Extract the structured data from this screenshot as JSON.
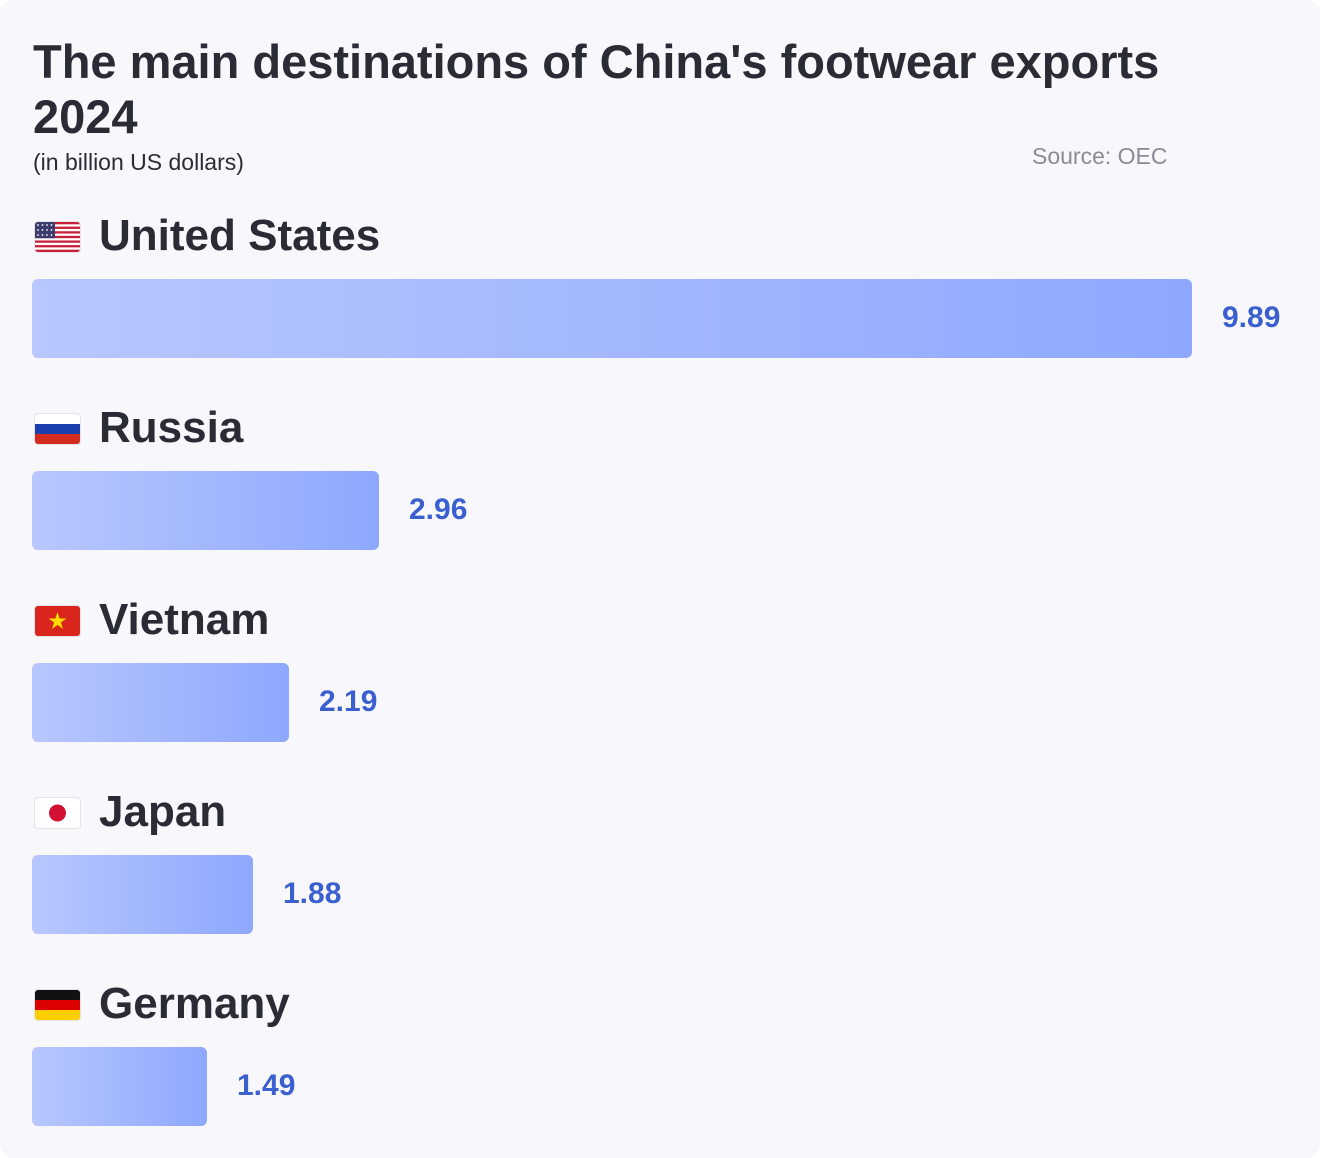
{
  "chart_data": {
    "type": "bar",
    "orientation": "horizontal",
    "title": "The main destinations of China's footwear exports 2024",
    "subtitle": "(in billion US dollars)",
    "source": "Source: OEC",
    "categories": [
      "United States",
      "Russia",
      "Vietnam",
      "Japan",
      "Germany"
    ],
    "values": [
      9.89,
      2.96,
      2.19,
      1.88,
      1.49
    ],
    "value_labels": [
      "9.89",
      "2.96",
      "2.19",
      "1.88",
      "1.49"
    ],
    "flag_icons": [
      "us-flag-icon",
      "russia-flag-icon",
      "vietnam-flag-icon",
      "japan-flag-icon",
      "germany-flag-icon"
    ],
    "xlim": [
      0,
      9.89
    ],
    "grid": false,
    "colors": {
      "bar_start": "#b8c7ff",
      "bar_end": "#8ea8fd",
      "value_text": "#3a5fce",
      "title_text": "#2b2b36",
      "source_text": "#8b8b95",
      "background": "#f7f7fc"
    }
  }
}
